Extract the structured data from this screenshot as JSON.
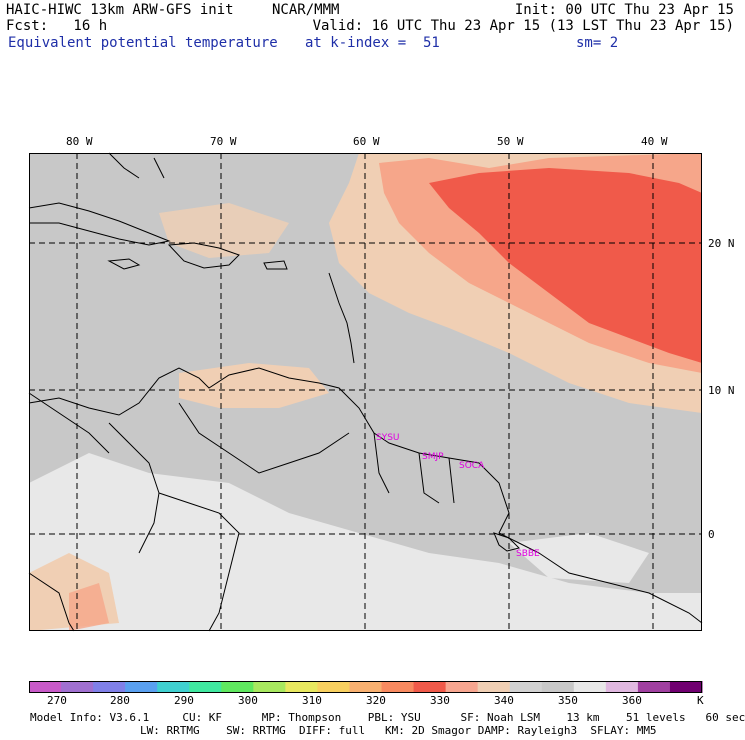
{
  "header": {
    "model_line": "HAIC-HIWC 13km ARW-GFS init",
    "org": "NCAR/MMM",
    "init": "Init: 00 UTC Thu 23 Apr 15",
    "fcst": "Fcst:   16 h",
    "valid": "Valid: 16 UTC Thu 23 Apr 15 (13 LST Thu 23 Apr 15)",
    "field": "Equivalent potential temperature",
    "level": "at k-index =  51",
    "smoothing": "sm= 2"
  },
  "map": {
    "lon_labels": [
      "80 W",
      "70 W",
      "60 W",
      "50 W",
      "40 W"
    ],
    "lat_labels": [
      "20 N",
      "10 N",
      "0"
    ],
    "station_labels": [
      "SYSU",
      "SMJP",
      "SOCA",
      "SBBE"
    ],
    "colors": {
      "ocean_gray": "#c8c8c8",
      "land_light": "#e8e8e8",
      "tan": "#f0cfb4",
      "salmon": "#f6a68a",
      "red": "#f05a4a",
      "station": "#e000e0"
    }
  },
  "colorbar": {
    "unit": "K",
    "tick_labels": [
      "270",
      "280",
      "290",
      "300",
      "310",
      "320",
      "330",
      "340",
      "350",
      "360"
    ],
    "colors": [
      "#c85ac8",
      "#a070d0",
      "#8080e8",
      "#5aa0f0",
      "#40d0d0",
      "#40e8a0",
      "#60e860",
      "#a8e860",
      "#e8e860",
      "#f8d060",
      "#f8b070",
      "#f88a60",
      "#f05a4a",
      "#f7a690",
      "#f0cfb4",
      "#d2d2d2",
      "#c8c8c8",
      "#e8e8e8",
      "#e0b8e0",
      "#a040a0",
      "#700070"
    ]
  },
  "footer": {
    "line1": "Model Info: V3.6.1     CU: KF      MP: Thompson    PBL: YSU      SF: Noah LSM    13 km    51 levels   60 sec",
    "line2": "LW: RRTMG    SW: RRTMG  DIFF: full   KM: 2D Smagor DAMP: Rayleigh3  SFLAY: MM5"
  }
}
